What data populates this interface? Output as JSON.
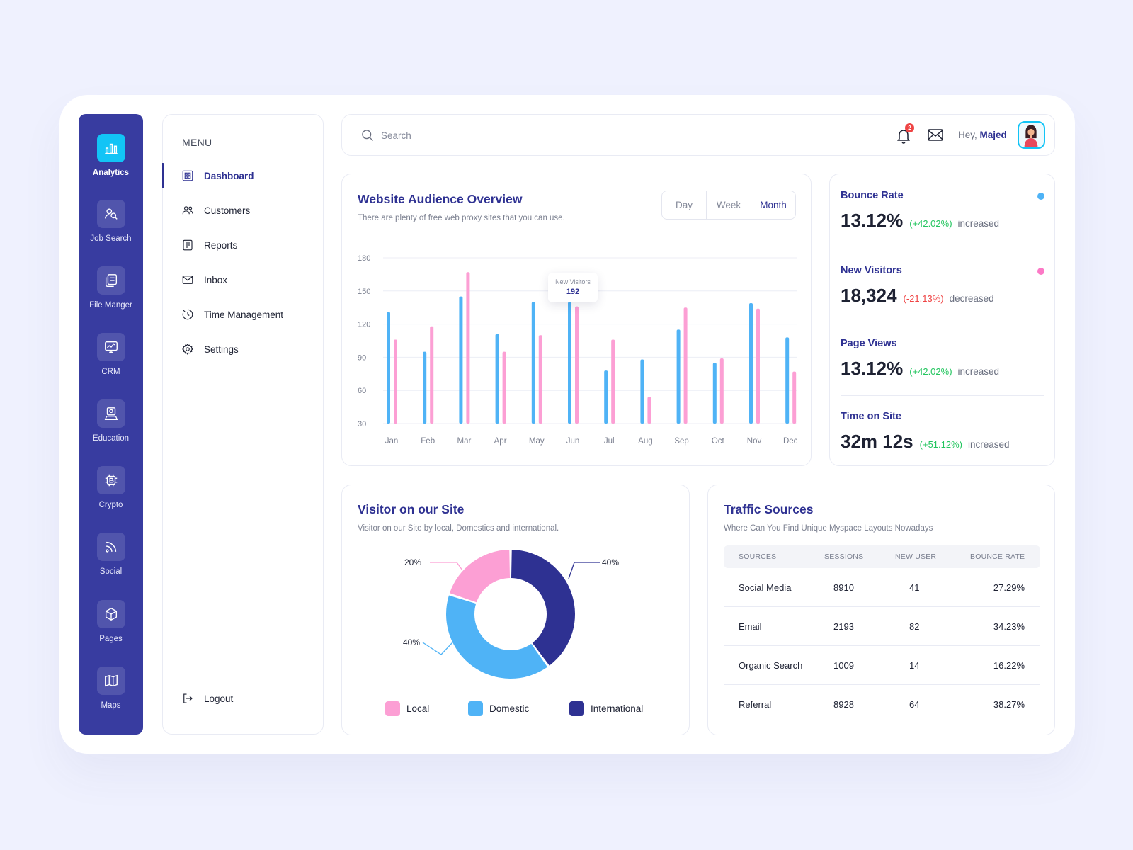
{
  "rail": {
    "items": [
      {
        "label": "Analytics",
        "icon": "analytics-icon",
        "active": true
      },
      {
        "label": "Job Search",
        "icon": "job-search-icon"
      },
      {
        "label": "File Manger",
        "icon": "file-manager-icon"
      },
      {
        "label": "CRM",
        "icon": "crm-icon"
      },
      {
        "label": "Education",
        "icon": "education-icon"
      },
      {
        "label": "Crypto",
        "icon": "crypto-icon"
      },
      {
        "label": "Social",
        "icon": "social-icon"
      },
      {
        "label": "Pages",
        "icon": "pages-icon"
      },
      {
        "label": "Maps",
        "icon": "maps-icon"
      }
    ]
  },
  "menu": {
    "title": "MENU",
    "items": [
      {
        "label": "Dashboard",
        "icon": "dashboard-icon",
        "active": true
      },
      {
        "label": "Customers",
        "icon": "customers-icon"
      },
      {
        "label": "Reports",
        "icon": "reports-icon"
      },
      {
        "label": "Inbox",
        "icon": "inbox-icon"
      },
      {
        "label": "Time Management",
        "icon": "time-management-icon"
      },
      {
        "label": "Settings",
        "icon": "settings-icon"
      }
    ],
    "logout": "Logout"
  },
  "topbar": {
    "search_placeholder": "Search",
    "notification_count": "2",
    "greeting": "Hey,",
    "user_name": "Majed"
  },
  "audience": {
    "title": "Website Audience Overview",
    "subtitle": "There are plenty of free web proxy sites that you can use.",
    "ranges": [
      "Day",
      "Week",
      "Month"
    ],
    "selected_range": "Month",
    "tooltip": {
      "label": "New Visitors",
      "value": "192"
    }
  },
  "chart_data": {
    "type": "bar",
    "categories": [
      "Jan",
      "Feb",
      "Mar",
      "Apr",
      "May",
      "Jun",
      "Jul",
      "Aug",
      "Sep",
      "Oct",
      "Nov",
      "Dec"
    ],
    "series": [
      {
        "values": [
          131,
          95,
          145,
          111,
          140,
          140,
          78,
          88,
          115,
          85,
          139,
          108
        ],
        "color": "#4fb3f6"
      },
      {
        "values": [
          106,
          118,
          167,
          95,
          110,
          136,
          106,
          54,
          135,
          89,
          134,
          77
        ],
        "color": "#fc9fd4"
      }
    ],
    "yticks": [
      180,
      150,
      120,
      90,
      60,
      30
    ],
    "ylim": [
      30,
      180
    ],
    "grid": true
  },
  "stats": [
    {
      "label": "Bounce Rate",
      "value": "13.12%",
      "change": "(+42.02%)",
      "note": "increased",
      "trend": "up",
      "dot": "#4fb3f6"
    },
    {
      "label": "New Visitors",
      "value": "18,324",
      "change": "(-21.13%)",
      "note": "decreased",
      "trend": "down",
      "dot": "#fc79c6"
    },
    {
      "label": "Page Views",
      "value": "13.12%",
      "change": "(+42.02%)",
      "note": "increased",
      "trend": "up"
    },
    {
      "label": "Time on Site",
      "value": "32m 12s",
      "change": "(+51.12%)",
      "note": "increased",
      "trend": "up"
    }
  ],
  "visitor": {
    "title": "Visitor on our Site",
    "subtitle": "Visitor on our Site by local, Domestics and international.",
    "slices": [
      {
        "name": "Local",
        "label": "20%",
        "share": 20,
        "color": "#fc9fd4"
      },
      {
        "name": "Domestic",
        "label": "40%",
        "share": 40,
        "color": "#4fb3f6"
      },
      {
        "name": "International",
        "label": "40%",
        "share": 40,
        "color": "#2e3192"
      }
    ]
  },
  "traffic": {
    "title": "Traffic Sources",
    "subtitle": "Where Can You Find Unique Myspace Layouts Nowadays",
    "columns": [
      "SOURCES",
      "SESSIONS",
      "NEW USER",
      "BOUNCE RATE"
    ],
    "rows": [
      [
        "Social Media",
        "8910",
        "41",
        "27.29%"
      ],
      [
        "Email",
        "2193",
        "82",
        "34.23%"
      ],
      [
        "Organic Search",
        "1009",
        "14",
        "16.22%"
      ],
      [
        "Referral",
        "8928",
        "64",
        "38.27%"
      ]
    ]
  },
  "colors": {
    "primary": "#2e3192",
    "rail": "#383ca0",
    "accent": "#12c4f6",
    "up": "#22c55e",
    "down": "#ef4444"
  }
}
